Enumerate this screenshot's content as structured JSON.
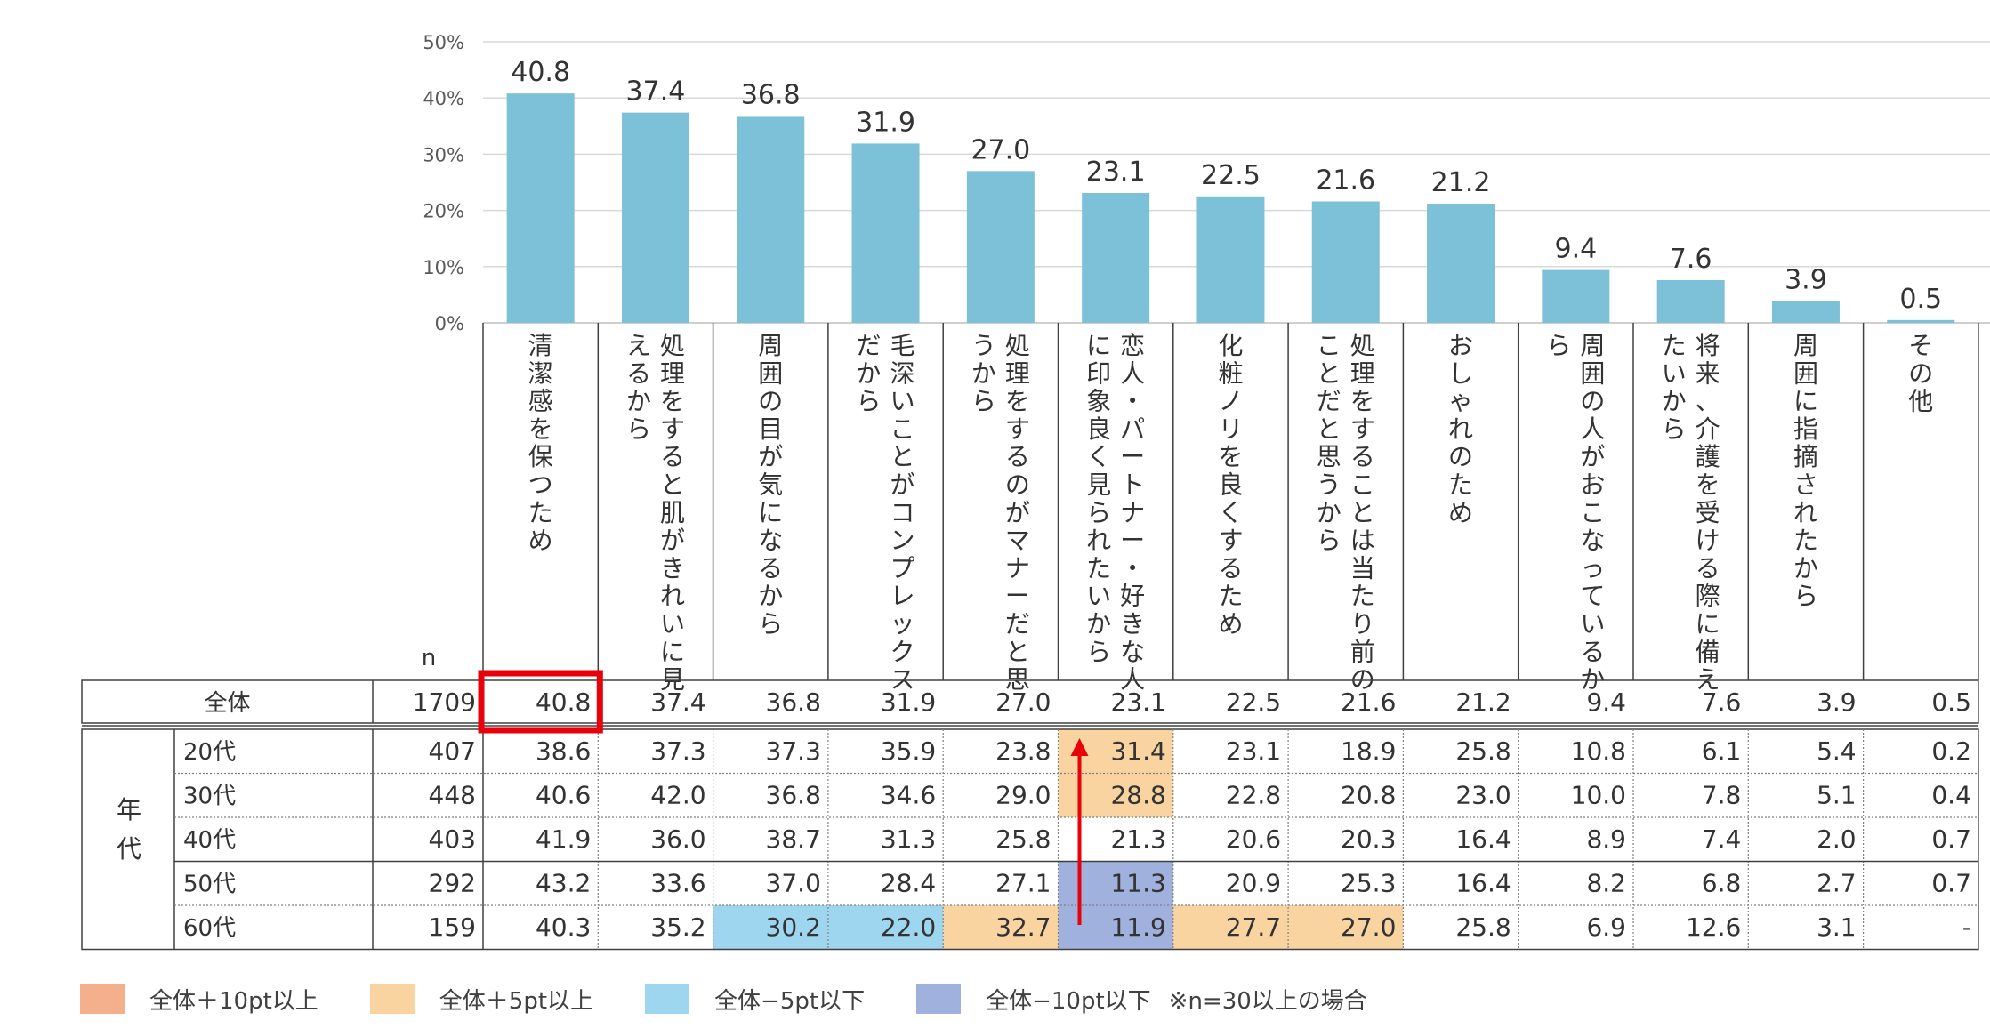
{
  "chart_data": {
    "type": "bar",
    "ylim": [
      0,
      50
    ],
    "yticks": [
      "0%",
      "10%",
      "20%",
      "30%",
      "40%",
      "50%"
    ],
    "categories": [
      "清潔感を保つため",
      "処理をすると肌がきれいに見えるから",
      "周囲の目が気になるから",
      "毛深いことがコンプレックスだから",
      "処理をするのがマナーだと思うから",
      "恋人・パートナー・好きな人に印象良く見られたいから",
      "化粧ノリを良くするため",
      "処理をすることは当たり前のことだと思うから",
      "おしゃれのため",
      "周囲の人がおこなっているから",
      "将来、介護を受ける際に備えたいから",
      "周囲に指摘されたから",
      "その他"
    ],
    "category_lines": [
      [
        "清潔感を保つため"
      ],
      [
        "処理をすると肌がきれいに見",
        "えるから"
      ],
      [
        "周囲の目が気になるから"
      ],
      [
        "毛深いことがコンプレックス",
        "だから"
      ],
      [
        "処理をするのがマナーだと思",
        "うから"
      ],
      [
        "恋人・パートナー・好きな人",
        "に印象良く見られたいから"
      ],
      [
        "化粧ノリを良くするため"
      ],
      [
        "処理をすることは当たり前の",
        "ことだと思うから"
      ],
      [
        "おしゃれのため"
      ],
      [
        "周囲の人がおこなっているか",
        "ら"
      ],
      [
        "将来、介護を受ける際に備え",
        "たいから"
      ],
      [
        "周囲に指摘されたから"
      ],
      [
        "その他"
      ]
    ],
    "values": [
      40.8,
      37.4,
      36.8,
      31.9,
      27.0,
      23.1,
      22.5,
      21.6,
      21.2,
      9.4,
      7.6,
      3.9,
      0.5
    ],
    "value_labels": [
      "40.8",
      "37.4",
      "36.8",
      "31.9",
      "27.0",
      "23.1",
      "22.5",
      "21.6",
      "21.2",
      "9.4",
      "7.6",
      "3.9",
      "0.5"
    ],
    "bar_color": "#7dc1d8"
  },
  "table": {
    "n_header": "n",
    "group_label": "年代",
    "total": {
      "label": "全体",
      "n": "1709",
      "cells": [
        "40.8",
        "37.4",
        "36.8",
        "31.9",
        "27.0",
        "23.1",
        "22.5",
        "21.6",
        "21.2",
        "9.4",
        "7.6",
        "3.9",
        "0.5"
      ]
    },
    "rows": [
      {
        "label": "20代",
        "n": "407",
        "cells": [
          "38.6",
          "37.3",
          "37.3",
          "35.9",
          "23.8",
          "31.4",
          "23.1",
          "18.9",
          "25.8",
          "10.8",
          "6.1",
          "5.4",
          "0.2"
        ],
        "colors": [
          "",
          "",
          "",
          "",
          "",
          "orange",
          "",
          "",
          "",
          "",
          "",
          "",
          ""
        ]
      },
      {
        "label": "30代",
        "n": "448",
        "cells": [
          "40.6",
          "42.0",
          "36.8",
          "34.6",
          "29.0",
          "28.8",
          "22.8",
          "20.8",
          "23.0",
          "10.0",
          "7.8",
          "5.1",
          "0.4"
        ],
        "colors": [
          "",
          "",
          "",
          "",
          "",
          "orange",
          "",
          "",
          "",
          "",
          "",
          "",
          ""
        ]
      },
      {
        "label": "40代",
        "n": "403",
        "cells": [
          "41.9",
          "36.0",
          "38.7",
          "31.3",
          "25.8",
          "21.3",
          "20.6",
          "20.3",
          "16.4",
          "8.9",
          "7.4",
          "2.0",
          "0.7"
        ],
        "colors": [
          "",
          "",
          "",
          "",
          "",
          "",
          "",
          "",
          "",
          "",
          "",
          "",
          ""
        ]
      },
      {
        "label": "50代",
        "n": "292",
        "cells": [
          "43.2",
          "33.6",
          "37.0",
          "28.4",
          "27.1",
          "11.3",
          "20.9",
          "25.3",
          "16.4",
          "8.2",
          "6.8",
          "2.7",
          "0.7"
        ],
        "colors": [
          "",
          "",
          "",
          "",
          "",
          "navy",
          "",
          "",
          "",
          "",
          "",
          "",
          ""
        ]
      },
      {
        "label": "60代",
        "n": "159",
        "cells": [
          "40.3",
          "35.2",
          "30.2",
          "22.0",
          "32.7",
          "11.9",
          "27.7",
          "27.0",
          "25.8",
          "6.9",
          "12.6",
          "3.1",
          "-"
        ],
        "colors": [
          "",
          "",
          "lightblue",
          "lightblue",
          "orange",
          "navy",
          "orange",
          "orange",
          "",
          "",
          "",
          "",
          ""
        ]
      }
    ],
    "highlight_colors": {
      "orange": "#f9d3a0",
      "navy": "#9fb1dc",
      "lightblue": "#9ed6f0",
      "salmon": "#f4b08c"
    },
    "highlight_border_color": "#e8000b",
    "arrow_color": "#e8000b"
  },
  "legend": {
    "items": [
      {
        "label": "全体＋10pt以上",
        "color": "#f4b08c"
      },
      {
        "label": "全体＋5pt以上",
        "color": "#f9d3a0"
      },
      {
        "label": "全体−5pt以下",
        "color": "#9ed6f0"
      },
      {
        "label": "全体−10pt以下",
        "color": "#9fb1dc"
      }
    ],
    "note": "※n=30以上の場合"
  }
}
